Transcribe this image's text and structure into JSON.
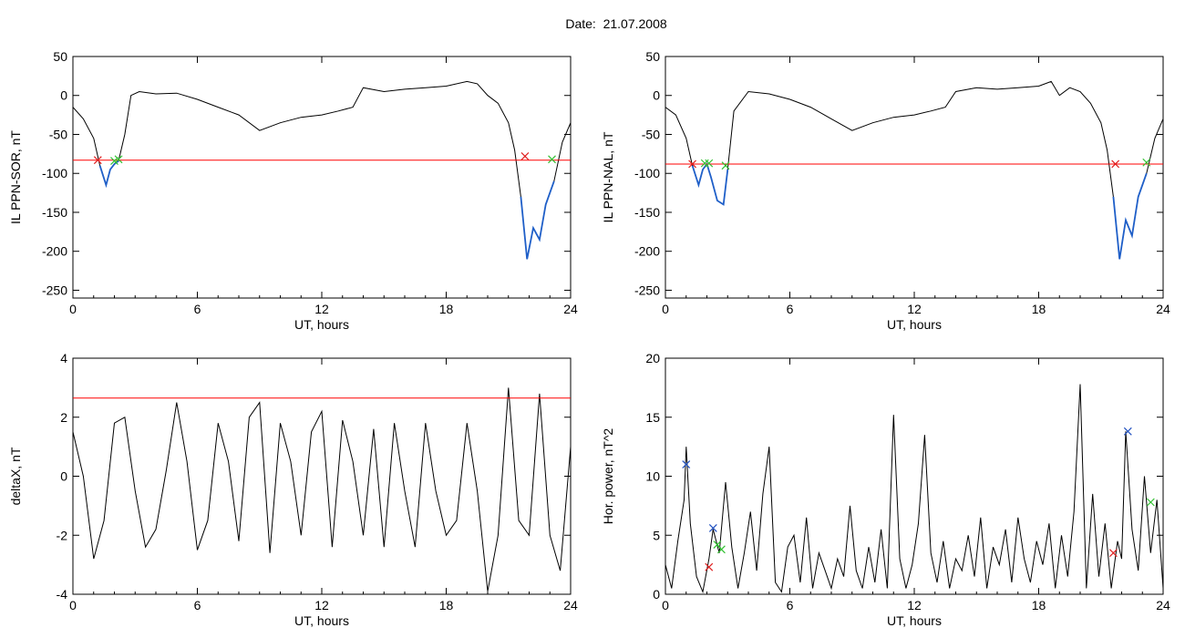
{
  "title": "Date:  21.07.2008",
  "colors": {
    "trace": "#000000",
    "threshold": "#ff0000",
    "highlight": "#1f5fc8",
    "marker_red": "#e02020",
    "marker_green": "#30c030",
    "marker_blue": "#2050c0"
  },
  "chart_data": [
    {
      "type": "line",
      "ylabel": "IL PPN-SOR, nT",
      "xlabel": "UT, hours",
      "xlim": [
        0,
        24
      ],
      "ylim": [
        -260,
        50
      ],
      "xticks": [
        0,
        6,
        12,
        18,
        24
      ],
      "yticks": [
        50,
        0,
        -50,
        -100,
        -150,
        -200,
        -250
      ],
      "threshold": -83,
      "series": [
        {
          "x": [
            0,
            0.5,
            1,
            1.3,
            1.6,
            1.8,
            2.0,
            2.2,
            2.5,
            2.8,
            3.2,
            4,
            5,
            6,
            7,
            8,
            9,
            10,
            11,
            12,
            12.8,
            13.5,
            14,
            15,
            16,
            17,
            18,
            19,
            19.5,
            20,
            20.5,
            21,
            21.3,
            21.6,
            21.9,
            22.2,
            22.5,
            22.8,
            23.2,
            23.6,
            24
          ],
          "y": [
            -15,
            -30,
            -55,
            -90,
            -115,
            -95,
            -88,
            -84,
            -50,
            0,
            5,
            2,
            3,
            -5,
            -15,
            -25,
            -45,
            -35,
            -28,
            -25,
            -20,
            -15,
            10,
            5,
            8,
            10,
            12,
            18,
            15,
            0,
            -10,
            -35,
            -70,
            -130,
            -210,
            -170,
            -185,
            -140,
            -110,
            -60,
            -35
          ]
        }
      ],
      "highlight_ranges": [
        [
          1.2,
          2.3
        ],
        [
          21.5,
          23.2
        ]
      ],
      "markers": [
        {
          "x": 1.2,
          "y": -83,
          "color": "red"
        },
        {
          "x": 2.0,
          "y": -84,
          "color": "green"
        },
        {
          "x": 2.2,
          "y": -82,
          "color": "green"
        },
        {
          "x": 21.8,
          "y": -78,
          "color": "red"
        },
        {
          "x": 23.1,
          "y": -82,
          "color": "green"
        }
      ]
    },
    {
      "type": "line",
      "ylabel": "IL PPN-NAL, nT",
      "xlabel": "UT, hours",
      "xlim": [
        0,
        24
      ],
      "ylim": [
        -260,
        50
      ],
      "xticks": [
        0,
        6,
        12,
        18,
        24
      ],
      "yticks": [
        50,
        0,
        -50,
        -100,
        -150,
        -200,
        -250
      ],
      "threshold": -88,
      "series": [
        {
          "x": [
            0,
            0.5,
            1,
            1.3,
            1.6,
            1.8,
            2.0,
            2.2,
            2.5,
            2.8,
            3.0,
            3.3,
            4,
            5,
            6,
            7,
            8,
            9,
            10,
            11,
            12,
            12.8,
            13.5,
            14,
            15,
            16,
            17,
            18,
            18.6,
            19,
            19.5,
            20,
            20.5,
            21,
            21.3,
            21.6,
            21.9,
            22.2,
            22.5,
            22.8,
            23.2,
            23.6,
            24
          ],
          "y": [
            -15,
            -25,
            -55,
            -90,
            -115,
            -95,
            -88,
            -105,
            -135,
            -140,
            -95,
            -20,
            5,
            2,
            -5,
            -15,
            -30,
            -45,
            -35,
            -28,
            -25,
            -20,
            -15,
            5,
            10,
            8,
            10,
            12,
            18,
            0,
            10,
            5,
            -10,
            -35,
            -70,
            -130,
            -210,
            -160,
            -180,
            -130,
            -100,
            -55,
            -30
          ]
        }
      ],
      "highlight_ranges": [
        [
          1.3,
          3.0
        ],
        [
          21.6,
          23.3
        ]
      ],
      "markers": [
        {
          "x": 1.3,
          "y": -88,
          "color": "red"
        },
        {
          "x": 1.9,
          "y": -87,
          "color": "green"
        },
        {
          "x": 2.1,
          "y": -87,
          "color": "green"
        },
        {
          "x": 2.9,
          "y": -90,
          "color": "green"
        },
        {
          "x": 21.7,
          "y": -88,
          "color": "red"
        },
        {
          "x": 23.2,
          "y": -86,
          "color": "green"
        }
      ]
    },
    {
      "type": "line",
      "ylabel": "deltaX, nT",
      "xlabel": "UT, hours",
      "xlim": [
        0,
        24
      ],
      "ylim": [
        -4,
        4
      ],
      "xticks": [
        0,
        6,
        12,
        18,
        24
      ],
      "yticks": [
        4,
        2,
        0,
        -2,
        -4
      ],
      "threshold": 2.65,
      "series": [
        {
          "x": [
            0,
            0.5,
            1,
            1.5,
            2,
            2.5,
            3,
            3.5,
            4,
            4.5,
            5,
            5.5,
            6,
            6.5,
            7,
            7.5,
            8,
            8.5,
            9,
            9.5,
            10,
            10.5,
            11,
            11.5,
            12,
            12.5,
            13,
            13.5,
            14,
            14.5,
            15,
            15.5,
            16,
            16.5,
            17,
            17.5,
            18,
            18.5,
            19,
            19.5,
            20,
            20.5,
            21,
            21.5,
            22,
            22.5,
            23,
            23.5,
            24
          ],
          "y": [
            1.5,
            0,
            -2.8,
            -1.5,
            1.8,
            2.0,
            -0.5,
            -2.4,
            -1.8,
            0.2,
            2.5,
            0.5,
            -2.5,
            -1.5,
            1.8,
            0.5,
            -2.2,
            2.0,
            2.5,
            -2.6,
            1.8,
            0.5,
            -2.0,
            1.5,
            2.2,
            -2.4,
            1.9,
            0.5,
            -2.0,
            1.6,
            -2.4,
            1.8,
            -0.5,
            -2.4,
            1.8,
            -0.5,
            -2.0,
            -1.5,
            1.8,
            -0.5,
            -3.9,
            -2.0,
            3.0,
            -1.5,
            -2.0,
            2.8,
            -2.0,
            -3.2,
            1.0
          ]
        }
      ],
      "highlight_ranges": [],
      "markers": []
    },
    {
      "type": "line",
      "ylabel": "Hor. power, nT^2",
      "xlabel": "UT, hours",
      "xlim": [
        0,
        24
      ],
      "ylim": [
        0,
        20
      ],
      "xticks": [
        0,
        6,
        12,
        18,
        24
      ],
      "yticks": [
        20,
        15,
        10,
        5,
        0
      ],
      "threshold": null,
      "series": [
        {
          "x": [
            0,
            0.3,
            0.6,
            0.9,
            1.0,
            1.2,
            1.5,
            1.8,
            2.1,
            2.3,
            2.6,
            2.9,
            3.2,
            3.5,
            3.8,
            4.1,
            4.4,
            4.7,
            5.0,
            5.3,
            5.6,
            5.9,
            6.2,
            6.5,
            6.8,
            7.1,
            7.4,
            7.7,
            8.0,
            8.3,
            8.6,
            8.9,
            9.2,
            9.5,
            9.8,
            10.1,
            10.4,
            10.7,
            11.0,
            11.3,
            11.6,
            11.9,
            12.2,
            12.5,
            12.8,
            13.1,
            13.4,
            13.7,
            14.0,
            14.3,
            14.6,
            14.9,
            15.2,
            15.5,
            15.8,
            16.1,
            16.4,
            16.7,
            17.0,
            17.3,
            17.6,
            17.9,
            18.2,
            18.5,
            18.8,
            19.1,
            19.4,
            19.7,
            20.0,
            20.3,
            20.6,
            20.9,
            21.2,
            21.5,
            21.8,
            22.0,
            22.2,
            22.5,
            22.8,
            23.1,
            23.4,
            23.7,
            24
          ],
          "y": [
            2.5,
            0.5,
            4.5,
            8.0,
            12.5,
            6.0,
            1.5,
            0.2,
            3.0,
            5.5,
            3.5,
            9.5,
            4.0,
            0.5,
            3.5,
            7.0,
            2.0,
            8.5,
            12.5,
            1.0,
            0.2,
            4.0,
            5.0,
            1.0,
            6.5,
            0.5,
            3.5,
            2.0,
            0.5,
            3.0,
            1.5,
            7.5,
            2.0,
            0.5,
            4.0,
            1.0,
            5.5,
            0.5,
            15.2,
            3.0,
            0.5,
            2.5,
            6.0,
            13.5,
            3.5,
            1.0,
            4.5,
            0.5,
            3.0,
            2.0,
            5.0,
            1.5,
            6.5,
            0.5,
            4.0,
            2.5,
            5.5,
            1.0,
            6.5,
            3.0,
            1.0,
            4.5,
            2.5,
            6.0,
            0.5,
            5.0,
            1.5,
            7.0,
            17.8,
            0.5,
            8.5,
            1.5,
            6.0,
            0.5,
            4.5,
            3.0,
            13.8,
            5.5,
            2.0,
            10.0,
            3.5,
            8.0,
            0.5
          ]
        }
      ],
      "highlight_ranges": [],
      "markers": [
        {
          "x": 1.0,
          "y": 11.0,
          "color": "blue"
        },
        {
          "x": 2.1,
          "y": 2.3,
          "color": "red"
        },
        {
          "x": 2.3,
          "y": 5.6,
          "color": "blue"
        },
        {
          "x": 2.5,
          "y": 4.2,
          "color": "green"
        },
        {
          "x": 2.7,
          "y": 3.8,
          "color": "green"
        },
        {
          "x": 21.6,
          "y": 3.5,
          "color": "red"
        },
        {
          "x": 22.3,
          "y": 13.8,
          "color": "blue"
        },
        {
          "x": 23.4,
          "y": 7.8,
          "color": "green"
        }
      ]
    }
  ]
}
